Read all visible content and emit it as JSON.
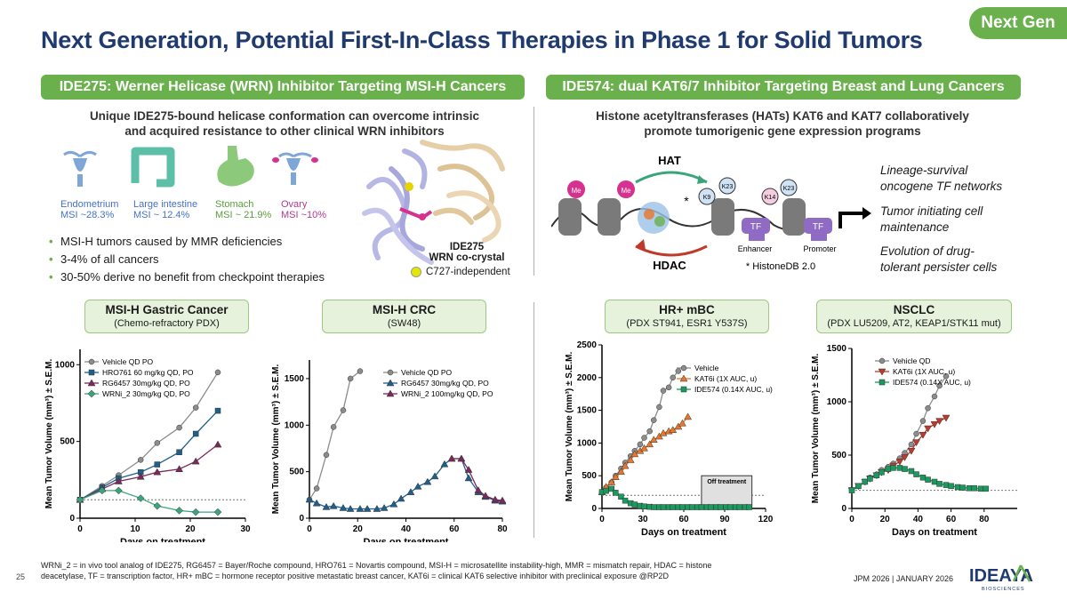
{
  "header": {
    "title": "Next Generation, Potential First-In-Class Therapies in Phase 1 for Solid Tumors",
    "badge": "Next Gen"
  },
  "left": {
    "section": "IDE275: Werner Helicase (WRN) Inhibitor Targeting MSI-H Cancers",
    "subtitle_line1": "Unique IDE275-bound helicase conformation can overcome intrinsic",
    "subtitle_line2": "and acquired resistance to other clinical WRN inhibitors",
    "organs": [
      {
        "name": "Endometrium",
        "msi": "MSI ~28.3%",
        "color": "#4472c4",
        "icon": "uterus-icon"
      },
      {
        "name": "Large intestine",
        "msi": "MSI ~ 12.4%",
        "color": "#4472c4",
        "icon": "intestine-icon"
      },
      {
        "name": "Stomach",
        "msi": "MSI ~ 21.9%",
        "color": "#6ab04c",
        "icon": "stomach-icon"
      },
      {
        "name": "Ovary",
        "msi": "MSI ~10%",
        "color": "#b3388f",
        "icon": "ovary-icon"
      }
    ],
    "bullets": [
      "MSI-H tumors caused by MMR deficiencies",
      "3-4% of all cancers",
      "30-50% derive no benefit from checkpoint therapies"
    ],
    "crystal": {
      "name": "IDE275",
      "line2": "WRN co-crystal",
      "legend": "C727-independent"
    }
  },
  "right": {
    "section": "IDE574: dual KAT6/7 Inhibitor Targeting Breast and Lung Cancers",
    "subtitle_line1": "Histone acetyltransferases (HATs) KAT6 and KAT7 collaboratively",
    "subtitle_line2": "promote tumorigenic gene expression programs",
    "diagram": {
      "hat": "HAT",
      "hdac": "HDAC",
      "me": "Me",
      "k9": "K9",
      "k23": "K23",
      "k14": "K14",
      "tf": "TF",
      "enhancer": "Enhancer",
      "promoter": "Promoter",
      "star": "*",
      "histonedb": "* HistoneDB 2.0"
    },
    "programs": [
      [
        "Lineage-survival",
        "oncogene TF networks"
      ],
      [
        "Tumor initiating cell",
        "maintenance"
      ],
      [
        "Evolution of drug-",
        "tolerant persister cells"
      ]
    ]
  },
  "charts": {
    "boxes": [
      {
        "title": "MSI-H Gastric Cancer",
        "sub": "(Chemo-refractory PDX)"
      },
      {
        "title": "MSI-H CRC",
        "sub": "(SW48)"
      },
      {
        "title": "HR+ mBC",
        "sub": "(PDX ST941, ESR1 Y537S)"
      },
      {
        "title": "NSCLC",
        "sub": "(PDX LU5209, AT2, KEAP1/STK11 mut)"
      }
    ],
    "off_treatment": "Off treatment"
  },
  "chart_data": [
    {
      "type": "line",
      "xlabel": "Days on treatment",
      "ylabel": "Mean Tumor Volume (mm³) ± S.E.M.",
      "xlim": [
        0,
        30
      ],
      "ylim": [
        0,
        1100
      ],
      "xticks": [
        0,
        10,
        20,
        30
      ],
      "yticks": [
        0,
        500,
        1000
      ],
      "baseline": 120,
      "series": [
        {
          "name": "Vehicle QD PO",
          "color": "#8c8c8c",
          "marker": "circle",
          "x": [
            0,
            4,
            7,
            11,
            14,
            18,
            21,
            25
          ],
          "y": [
            120,
            210,
            280,
            380,
            490,
            590,
            720,
            950
          ]
        },
        {
          "name": "HRO761 60 mg/kg QD, PO",
          "color": "#1f5f8b",
          "marker": "square",
          "x": [
            0,
            4,
            7,
            11,
            14,
            18,
            21,
            25
          ],
          "y": [
            120,
            200,
            260,
            300,
            350,
            430,
            550,
            700
          ]
        },
        {
          "name": "RG6457 30mg/kg QD, PO",
          "color": "#7a2a5a",
          "marker": "triangle",
          "x": [
            0,
            4,
            7,
            11,
            14,
            18,
            21,
            25
          ],
          "y": [
            120,
            190,
            240,
            270,
            300,
            320,
            370,
            480
          ]
        },
        {
          "name": "WRNi_2 30mg/kg QD, PO",
          "color": "#3aa57a",
          "marker": "diamond",
          "x": [
            0,
            4,
            7,
            11,
            14,
            18,
            21,
            25
          ],
          "y": [
            120,
            180,
            180,
            130,
            80,
            50,
            40,
            40
          ]
        }
      ]
    },
    {
      "type": "line",
      "xlabel": "Days on treatment",
      "ylabel": "Mean Tumor Volume (mm³) ± S.E.M.",
      "xlim": [
        0,
        80
      ],
      "ylim": [
        0,
        1700
      ],
      "xticks": [
        0,
        20,
        40,
        60,
        80
      ],
      "yticks": [
        0,
        500,
        1000,
        1500
      ],
      "series": [
        {
          "name": "Vehicle QD PO",
          "color": "#8c8c8c",
          "marker": "circle",
          "x": [
            0,
            3,
            7,
            10,
            14,
            17,
            21
          ],
          "y": [
            200,
            320,
            680,
            980,
            1160,
            1500,
            1580
          ]
        },
        {
          "name": "RG6457  30mg/kg QD, PO",
          "color": "#1f5f8b",
          "marker": "triangle",
          "x": [
            0,
            3,
            7,
            10,
            14,
            17,
            21,
            24,
            28,
            31,
            35,
            38,
            42,
            45,
            49,
            52,
            56,
            59,
            63,
            66,
            70,
            73,
            77,
            80
          ],
          "y": [
            200,
            160,
            120,
            130,
            110,
            100,
            100,
            100,
            100,
            110,
            150,
            210,
            280,
            340,
            390,
            450,
            580,
            640,
            640,
            430,
            280,
            230,
            190,
            180
          ]
        },
        {
          "name": "WRNi_2 100mg/kg QD, PO",
          "color": "#7a2a5a",
          "marker": "triangle",
          "x": [
            59,
            63,
            66,
            70,
            73,
            77,
            80
          ],
          "y": [
            640,
            640,
            520,
            300,
            240,
            200,
            190
          ]
        }
      ]
    },
    {
      "type": "line",
      "xlabel": "Days on treatment",
      "ylabel": "Mean Tumor Volume (mm³) ± S.E.M.",
      "xlim": [
        0,
        120
      ],
      "ylim": [
        0,
        2500
      ],
      "xticks": [
        0,
        30,
        60,
        90,
        120
      ],
      "yticks": [
        0,
        500,
        1000,
        1500,
        2000,
        2500
      ],
      "off_treatment_range": [
        73,
        110
      ],
      "baseline": 200,
      "series": [
        {
          "name": "Vehicle",
          "color": "#8c8c8c",
          "marker": "circle",
          "x": [
            0,
            3,
            7,
            10,
            14,
            17,
            21,
            24,
            28,
            31,
            35,
            38,
            42,
            45,
            49,
            52,
            56
          ],
          "y": [
            250,
            320,
            400,
            500,
            610,
            700,
            800,
            880,
            980,
            1080,
            1180,
            1350,
            1550,
            1800,
            1850,
            2000,
            2100
          ]
        },
        {
          "name": "KAT6i (1X  AUC, u)",
          "color": "#e8762b",
          "marker": "triangle",
          "x": [
            0,
            3,
            7,
            10,
            14,
            17,
            21,
            24,
            28,
            31,
            35,
            38,
            42,
            45,
            49,
            52,
            56,
            59,
            63
          ],
          "y": [
            250,
            330,
            400,
            480,
            560,
            650,
            740,
            830,
            880,
            920,
            980,
            1050,
            1100,
            1150,
            1180,
            1200,
            1250,
            1300,
            1400
          ]
        },
        {
          "name": "IDE574 (0.14X  AUC, u)",
          "color": "#1a9a5e",
          "marker": "square",
          "x": [
            0,
            3,
            7,
            10,
            14,
            17,
            21,
            24,
            28,
            31,
            35,
            38,
            42,
            45,
            49,
            52,
            56,
            59,
            63,
            66,
            70,
            73,
            77,
            80,
            84,
            87,
            91,
            94,
            98,
            101,
            105,
            108
          ],
          "y": [
            250,
            270,
            300,
            240,
            180,
            120,
            80,
            60,
            40,
            30,
            25,
            20,
            20,
            20,
            20,
            20,
            20,
            20,
            20,
            20,
            20,
            20,
            20,
            20,
            20,
            20,
            20,
            20,
            20,
            20,
            20,
            20
          ]
        }
      ]
    },
    {
      "type": "line",
      "xlabel": "Days on treatment",
      "ylabel": "Mean Tumor Volume (mm³) ± S.E.M.",
      "xlim": [
        0,
        100
      ],
      "ylim": [
        0,
        1500
      ],
      "xticks": [
        0,
        20,
        40,
        60,
        80
      ],
      "yticks": [
        0,
        500,
        1000,
        1500
      ],
      "baseline": 170,
      "series": [
        {
          "name": "Vehicle QD",
          "color": "#8c8c8c",
          "marker": "circle",
          "x": [
            0,
            4,
            8,
            11,
            15,
            18,
            22,
            25,
            29,
            32,
            36,
            39,
            43,
            46,
            50,
            53,
            57
          ],
          "y": [
            170,
            210,
            250,
            290,
            320,
            360,
            390,
            420,
            470,
            520,
            600,
            700,
            820,
            940,
            1050,
            1150,
            1240
          ]
        },
        {
          "name": "KAT6i (1X AUC, u)",
          "color": "#c0392b",
          "marker": "triangle-down",
          "x": [
            0,
            4,
            8,
            11,
            15,
            18,
            22,
            25,
            29,
            32,
            36,
            39,
            43,
            46,
            50,
            53,
            57
          ],
          "y": [
            170,
            210,
            250,
            280,
            310,
            340,
            360,
            400,
            440,
            480,
            540,
            620,
            690,
            750,
            790,
            820,
            850
          ]
        },
        {
          "name": "IDE574 (0.14X AUC, u)",
          "color": "#1a9a5e",
          "marker": "square",
          "x": [
            0,
            4,
            8,
            11,
            15,
            18,
            22,
            25,
            29,
            32,
            36,
            39,
            43,
            46,
            50,
            53,
            57,
            60,
            64,
            67,
            71,
            74,
            78,
            81
          ],
          "y": [
            170,
            210,
            250,
            280,
            310,
            340,
            370,
            380,
            380,
            370,
            350,
            320,
            290,
            270,
            250,
            230,
            220,
            210,
            200,
            195,
            190,
            190,
            185,
            185
          ]
        }
      ]
    }
  ],
  "footer": {
    "note_line1": "WRNi_2 = in vivo tool analog of IDE275, RG6457 = Bayer/Roche compound, HRO761 = Novartis compound, MSI-H = microsatellite instability-high, MMR = mismatch repair, HDAC = histone",
    "note_line2": "deacetylase, TF = transcription factor, HR+ mBC = hormone receptor positive metastatic breast cancer, KAT6i = clinical KAT6 selective inhibitor with preclinical exposure @RP2D",
    "page": "25",
    "date": "JPM 2026  | JANUARY 2026",
    "logo": "IDEAYA",
    "logo_sub": "BIOSCIENCES"
  }
}
